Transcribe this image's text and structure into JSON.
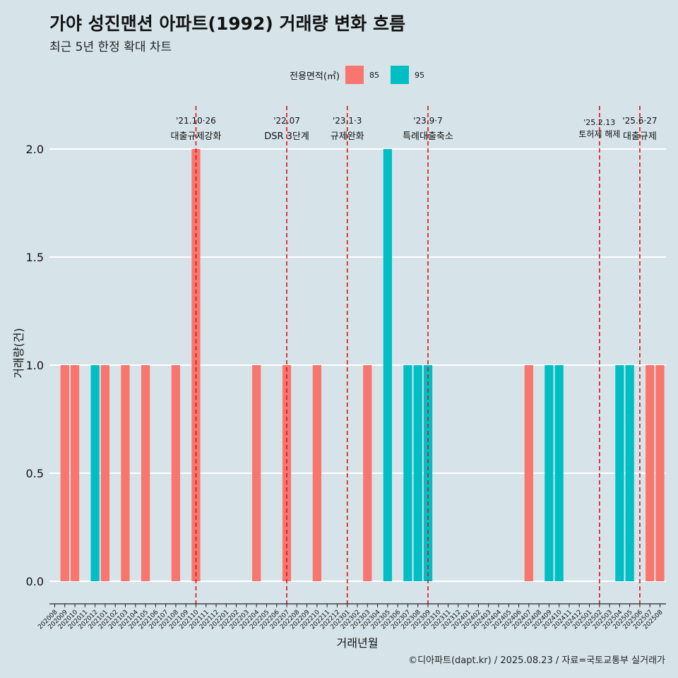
{
  "title": "가야 성진맨션 아파트(1992) 거래량 변화 흐름",
  "subtitle": "최근 5년 한정 확대 차트",
  "legend": {
    "title": "전용면적(㎡)",
    "items": [
      {
        "label": "85",
        "color": "#F8766D"
      },
      {
        "label": "95",
        "color": "#00BFC4"
      }
    ]
  },
  "caption": "©디아파트(dapt.kr) / 2025.08.23 / 자료=국토교통부 실거래가",
  "chart_data": {
    "type": "bar",
    "xlabel": "거래년월",
    "ylabel": "거래량(건)",
    "ylim": [
      0,
      2
    ],
    "yticks": [
      "0.0",
      "0.5",
      "1.0",
      "1.5",
      "2.0"
    ],
    "grid": true,
    "legend_position": "top",
    "categories": [
      "202008",
      "202009",
      "202010",
      "202011",
      "202012",
      "202101",
      "202102",
      "202103",
      "202104",
      "202105",
      "202106",
      "202107",
      "202108",
      "202109",
      "202110",
      "202111",
      "202112",
      "202201",
      "202202",
      "202203",
      "202204",
      "202205",
      "202206",
      "202207",
      "202208",
      "202209",
      "202210",
      "202211",
      "202212",
      "202301",
      "202302",
      "202303",
      "202304",
      "202305",
      "202306",
      "202307",
      "202308",
      "202309",
      "202310",
      "202311",
      "202312",
      "202401",
      "202402",
      "202403",
      "202404",
      "202405",
      "202406",
      "202407",
      "202408",
      "202409",
      "202410",
      "202411",
      "202412",
      "202501",
      "202502",
      "202503",
      "202504",
      "202505",
      "202506",
      "202507",
      "202508"
    ],
    "bars": [
      {
        "x": "202009",
        "series": "85",
        "value": 1
      },
      {
        "x": "202010",
        "series": "85",
        "value": 1
      },
      {
        "x": "202012",
        "series": "95",
        "value": 1
      },
      {
        "x": "202101",
        "series": "85",
        "value": 1
      },
      {
        "x": "202103",
        "series": "85",
        "value": 1
      },
      {
        "x": "202105",
        "series": "85",
        "value": 1
      },
      {
        "x": "202108",
        "series": "85",
        "value": 1
      },
      {
        "x": "202110",
        "series": "85",
        "value": 2
      },
      {
        "x": "202204",
        "series": "85",
        "value": 1
      },
      {
        "x": "202207",
        "series": "85",
        "value": 1
      },
      {
        "x": "202210",
        "series": "85",
        "value": 1
      },
      {
        "x": "202303",
        "series": "85",
        "value": 1
      },
      {
        "x": "202305",
        "series": "95",
        "value": 2
      },
      {
        "x": "202307",
        "series": "95",
        "value": 1
      },
      {
        "x": "202308",
        "series": "95",
        "value": 1
      },
      {
        "x": "202309",
        "series": "95",
        "value": 1
      },
      {
        "x": "202407",
        "series": "85",
        "value": 1
      },
      {
        "x": "202409",
        "series": "95",
        "value": 1
      },
      {
        "x": "202410",
        "series": "95",
        "value": 1
      },
      {
        "x": "202504",
        "series": "95",
        "value": 1
      },
      {
        "x": "202505",
        "series": "95",
        "value": 1
      },
      {
        "x": "202507",
        "series": "85",
        "value": 1
      },
      {
        "x": "202508",
        "series": "85",
        "value": 1
      }
    ],
    "events": [
      {
        "x": "202110",
        "date": "'21.10·26",
        "label": "대출규제강화"
      },
      {
        "x": "202207",
        "date": "'22.07",
        "label": "DSR 3단계"
      },
      {
        "x": "202301",
        "date": "'23.1·3",
        "label": "규제완화"
      },
      {
        "x": "202309",
        "date": "'23.9·7",
        "label": "특례대출축소"
      },
      {
        "x": "202502",
        "date": "'25.2.13",
        "label": "토허제 해제"
      },
      {
        "x": "202506",
        "date": "'25.6·27",
        "label": "대출규제"
      }
    ]
  }
}
